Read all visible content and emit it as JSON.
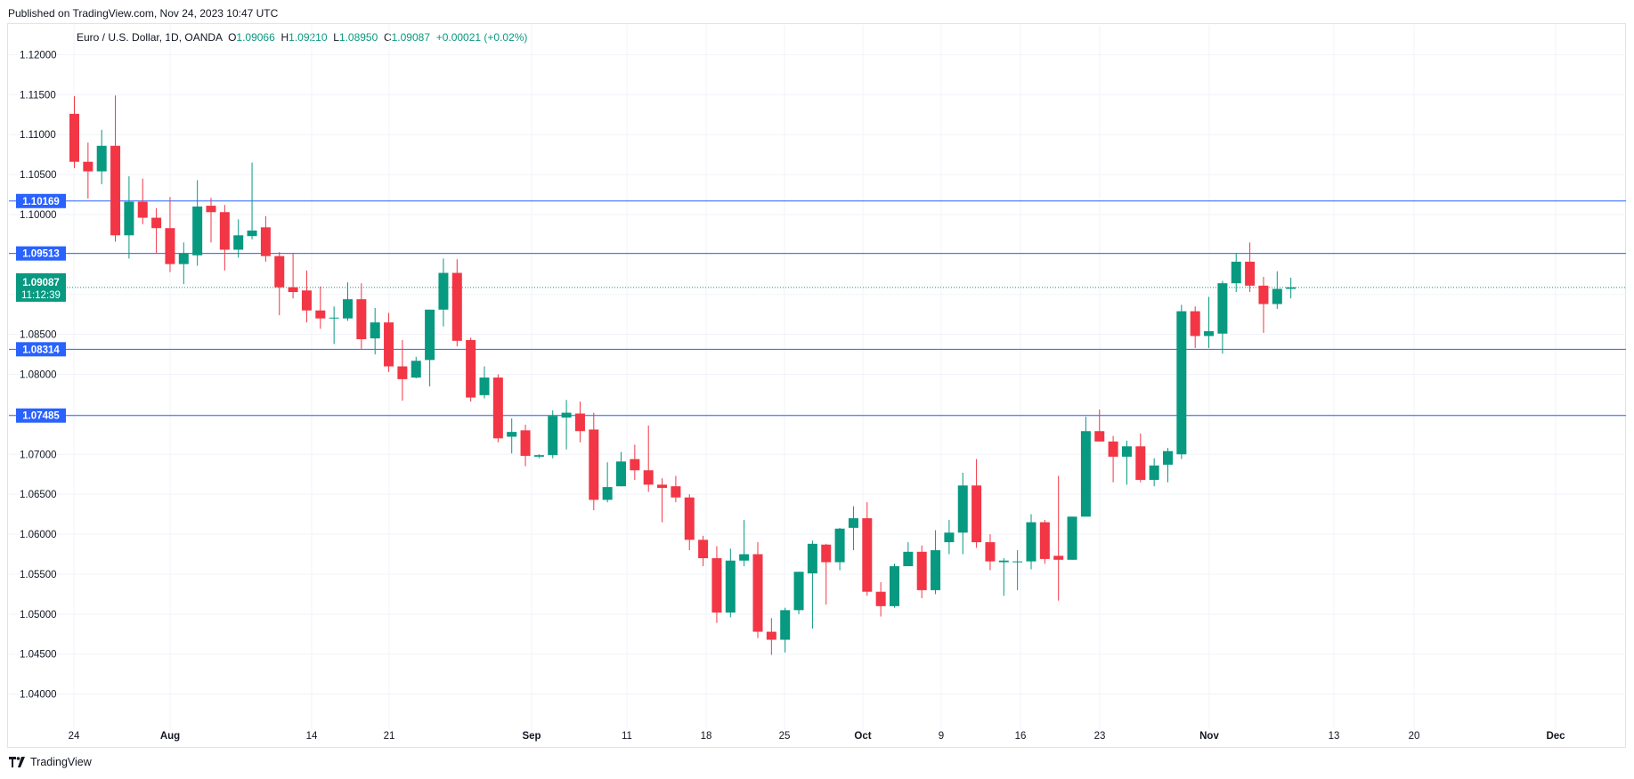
{
  "header": {
    "published": "Published on TradingView.com, Nov 24, 2023 10:47 UTC"
  },
  "legend": {
    "symbol": "Euro / U.S. Dollar, 1D, OANDA",
    "o_label": "O",
    "o_value": "1.09066",
    "h_label": "H",
    "h_value": "1.09210",
    "l_label": "L",
    "l_value": "1.08950",
    "c_label": "C",
    "c_value": "1.09087",
    "change": "+0.00021 (+0.02%)"
  },
  "footer": {
    "brand": "TradingView"
  },
  "colors": {
    "up": "#089981",
    "down": "#f23645",
    "level": "#2962ff",
    "grid": "#f0f3fa",
    "text": "#131722"
  },
  "chart_data": {
    "type": "candlestick",
    "title": "Euro / U.S. Dollar, 1D, OANDA",
    "ylim": [
      1.0355,
      1.1235
    ],
    "y_ticks": [
      "1.04000",
      "1.04500",
      "1.05000",
      "1.05500",
      "1.06000",
      "1.06500",
      "1.07000",
      "1.07500",
      "1.08000",
      "1.08500",
      "1.09000",
      "1.09500",
      "1.10000",
      "1.10500",
      "1.11000",
      "1.11500",
      "1.12000"
    ],
    "x_ticks": [
      "24",
      "Aug",
      "14",
      "21",
      "Sep",
      "11",
      "18",
      "25",
      "Oct",
      "9",
      "16",
      "23",
      "Nov",
      "13",
      "20",
      "Dec"
    ],
    "horizontal_levels": [
      "1.10169",
      "1.09513",
      "1.08314",
      "1.07485"
    ],
    "last_price": "1.09087",
    "countdown": "11:12:39",
    "grid": true,
    "candles": [
      {
        "o": 1.1126,
        "h": 1.1148,
        "l": 1.1058,
        "c": 1.1066
      },
      {
        "o": 1.1066,
        "h": 1.109,
        "l": 1.102,
        "c": 1.1054
      },
      {
        "o": 1.1054,
        "h": 1.1106,
        "l": 1.1038,
        "c": 1.1086
      },
      {
        "o": 1.1086,
        "h": 1.1149,
        "l": 1.0966,
        "c": 1.0974
      },
      {
        "o": 1.0974,
        "h": 1.1048,
        "l": 1.0945,
        "c": 1.1016
      },
      {
        "o": 1.1016,
        "h": 1.1045,
        "l": 1.0988,
        "c": 1.0996
      },
      {
        "o": 1.0996,
        "h": 1.1008,
        "l": 1.0952,
        "c": 1.0983
      },
      {
        "o": 1.0983,
        "h": 1.1022,
        "l": 1.0928,
        "c": 1.0938
      },
      {
        "o": 1.0938,
        "h": 1.0965,
        "l": 1.0913,
        "c": 1.0951
      },
      {
        "o": 1.0949,
        "h": 1.1043,
        "l": 1.0936,
        "c": 1.101
      },
      {
        "o": 1.1011,
        "h": 1.1021,
        "l": 1.0965,
        "c": 1.1003
      },
      {
        "o": 1.1003,
        "h": 1.1012,
        "l": 1.093,
        "c": 1.0956
      },
      {
        "o": 1.0956,
        "h": 1.0994,
        "l": 1.0946,
        "c": 1.0974
      },
      {
        "o": 1.0973,
        "h": 1.1065,
        "l": 1.0969,
        "c": 1.098
      },
      {
        "o": 1.0984,
        "h": 1.0998,
        "l": 1.0941,
        "c": 1.0948
      },
      {
        "o": 1.0948,
        "h": 1.0953,
        "l": 1.0874,
        "c": 1.0909
      },
      {
        "o": 1.0909,
        "h": 1.0951,
        "l": 1.0895,
        "c": 1.0903
      },
      {
        "o": 1.0905,
        "h": 1.093,
        "l": 1.0865,
        "c": 1.088
      },
      {
        "o": 1.088,
        "h": 1.091,
        "l": 1.0857,
        "c": 1.087
      },
      {
        "o": 1.0871,
        "h": 1.0885,
        "l": 1.0838,
        "c": 1.0871
      },
      {
        "o": 1.087,
        "h": 1.0915,
        "l": 1.0867,
        "c": 1.0894
      },
      {
        "o": 1.0894,
        "h": 1.0914,
        "l": 1.0832,
        "c": 1.0844
      },
      {
        "o": 1.0845,
        "h": 1.0883,
        "l": 1.0825,
        "c": 1.0865
      },
      {
        "o": 1.0865,
        "h": 1.0877,
        "l": 1.0803,
        "c": 1.081
      },
      {
        "o": 1.081,
        "h": 1.0843,
        "l": 1.0767,
        "c": 1.0794
      },
      {
        "o": 1.0796,
        "h": 1.0822,
        "l": 1.0795,
        "c": 1.0817
      },
      {
        "o": 1.0818,
        "h": 1.088,
        "l": 1.0785,
        "c": 1.0881
      },
      {
        "o": 1.0881,
        "h": 1.0945,
        "l": 1.086,
        "c": 1.0927
      },
      {
        "o": 1.0927,
        "h": 1.0944,
        "l": 1.0835,
        "c": 1.0842
      },
      {
        "o": 1.0843,
        "h": 1.0846,
        "l": 1.0766,
        "c": 1.0771
      },
      {
        "o": 1.0774,
        "h": 1.081,
        "l": 1.077,
        "c": 1.0796
      },
      {
        "o": 1.0796,
        "h": 1.08,
        "l": 1.0715,
        "c": 1.072
      },
      {
        "o": 1.0722,
        "h": 1.0745,
        "l": 1.0701,
        "c": 1.0728
      },
      {
        "o": 1.073,
        "h": 1.0737,
        "l": 1.0685,
        "c": 1.0698
      },
      {
        "o": 1.0697,
        "h": 1.07,
        "l": 1.0695,
        "c": 1.0699
      },
      {
        "o": 1.0699,
        "h": 1.0755,
        "l": 1.0695,
        "c": 1.0748
      },
      {
        "o": 1.0746,
        "h": 1.0768,
        "l": 1.0706,
        "c": 1.0752
      },
      {
        "o": 1.0751,
        "h": 1.0766,
        "l": 1.0715,
        "c": 1.0729
      },
      {
        "o": 1.0731,
        "h": 1.0752,
        "l": 1.063,
        "c": 1.0643
      },
      {
        "o": 1.0643,
        "h": 1.069,
        "l": 1.064,
        "c": 1.0659
      },
      {
        "o": 1.066,
        "h": 1.0703,
        "l": 1.066,
        "c": 1.0691
      },
      {
        "o": 1.0694,
        "h": 1.0712,
        "l": 1.0668,
        "c": 1.068
      },
      {
        "o": 1.068,
        "h": 1.0736,
        "l": 1.0653,
        "c": 1.0662
      },
      {
        "o": 1.0662,
        "h": 1.067,
        "l": 1.0615,
        "c": 1.0658
      },
      {
        "o": 1.066,
        "h": 1.0673,
        "l": 1.064,
        "c": 1.0646
      },
      {
        "o": 1.0646,
        "h": 1.065,
        "l": 1.058,
        "c": 1.0593
      },
      {
        "o": 1.0593,
        "h": 1.0598,
        "l": 1.056,
        "c": 1.057
      },
      {
        "o": 1.057,
        "h": 1.0585,
        "l": 1.0489,
        "c": 1.0502
      },
      {
        "o": 1.0502,
        "h": 1.0582,
        "l": 1.0496,
        "c": 1.0567
      },
      {
        "o": 1.0567,
        "h": 1.0618,
        "l": 1.056,
        "c": 1.0575
      },
      {
        "o": 1.0575,
        "h": 1.059,
        "l": 1.047,
        "c": 1.0478
      },
      {
        "o": 1.0478,
        "h": 1.0495,
        "l": 1.0449,
        "c": 1.0468
      },
      {
        "o": 1.0468,
        "h": 1.0508,
        "l": 1.0452,
        "c": 1.0505
      },
      {
        "o": 1.0505,
        "h": 1.0553,
        "l": 1.05,
        "c": 1.0553
      },
      {
        "o": 1.0551,
        "h": 1.0592,
        "l": 1.0482,
        "c": 1.0588
      },
      {
        "o": 1.0587,
        "h": 1.0588,
        "l": 1.0512,
        "c": 1.0565
      },
      {
        "o": 1.0565,
        "h": 1.0608,
        "l": 1.0555,
        "c": 1.0607
      },
      {
        "o": 1.0608,
        "h": 1.0635,
        "l": 1.058,
        "c": 1.062
      },
      {
        "o": 1.062,
        "h": 1.064,
        "l": 1.0523,
        "c": 1.0528
      },
      {
        "o": 1.0528,
        "h": 1.054,
        "l": 1.0497,
        "c": 1.051
      },
      {
        "o": 1.051,
        "h": 1.0563,
        "l": 1.0508,
        "c": 1.056
      },
      {
        "o": 1.056,
        "h": 1.059,
        "l": 1.056,
        "c": 1.0578
      },
      {
        "o": 1.0578,
        "h": 1.0586,
        "l": 1.052,
        "c": 1.053
      },
      {
        "o": 1.053,
        "h": 1.0605,
        "l": 1.0525,
        "c": 1.058
      },
      {
        "o": 1.059,
        "h": 1.0618,
        "l": 1.0575,
        "c": 1.0602
      },
      {
        "o": 1.0602,
        "h": 1.0677,
        "l": 1.0575,
        "c": 1.0661
      },
      {
        "o": 1.0661,
        "h": 1.0694,
        "l": 1.0583,
        "c": 1.059
      },
      {
        "o": 1.059,
        "h": 1.06,
        "l": 1.0555,
        "c": 1.0566
      },
      {
        "o": 1.0565,
        "h": 1.057,
        "l": 1.0523,
        "c": 1.0567
      },
      {
        "o": 1.0566,
        "h": 1.058,
        "l": 1.053,
        "c": 1.0566
      },
      {
        "o": 1.0566,
        "h": 1.0625,
        "l": 1.0556,
        "c": 1.0615
      },
      {
        "o": 1.0615,
        "h": 1.0618,
        "l": 1.0563,
        "c": 1.0569
      },
      {
        "o": 1.0573,
        "h": 1.0673,
        "l": 1.0517,
        "c": 1.0568
      },
      {
        "o": 1.0568,
        "h": 1.0622,
        "l": 1.0568,
        "c": 1.0622
      },
      {
        "o": 1.0622,
        "h": 1.0747,
        "l": 1.0622,
        "c": 1.0729
      },
      {
        "o": 1.0729,
        "h": 1.0756,
        "l": 1.0716,
        "c": 1.0716
      },
      {
        "o": 1.0716,
        "h": 1.0723,
        "l": 1.0665,
        "c": 1.0697
      },
      {
        "o": 1.0697,
        "h": 1.0717,
        "l": 1.0662,
        "c": 1.071
      },
      {
        "o": 1.071,
        "h": 1.0726,
        "l": 1.0665,
        "c": 1.0668
      },
      {
        "o": 1.0668,
        "h": 1.0695,
        "l": 1.066,
        "c": 1.0686
      },
      {
        "o": 1.0687,
        "h": 1.0708,
        "l": 1.0665,
        "c": 1.0704
      },
      {
        "o": 1.07,
        "h": 1.0887,
        "l": 1.0694,
        "c": 1.0879
      },
      {
        "o": 1.0879,
        "h": 1.0885,
        "l": 1.0833,
        "c": 1.0848
      },
      {
        "o": 1.0848,
        "h": 1.0897,
        "l": 1.0833,
        "c": 1.0854
      },
      {
        "o": 1.0851,
        "h": 1.0917,
        "l": 1.0826,
        "c": 1.0914
      },
      {
        "o": 1.0914,
        "h": 1.0952,
        "l": 1.0903,
        "c": 1.0941
      },
      {
        "o": 1.0941,
        "h": 1.0965,
        "l": 1.0903,
        "c": 1.0911
      },
      {
        "o": 1.0911,
        "h": 1.0922,
        "l": 1.0852,
        "c": 1.0888
      },
      {
        "o": 1.0888,
        "h": 1.0929,
        "l": 1.0882,
        "c": 1.0907
      },
      {
        "o": 1.0907,
        "h": 1.0921,
        "l": 1.0895,
        "c": 1.0909
      }
    ]
  }
}
